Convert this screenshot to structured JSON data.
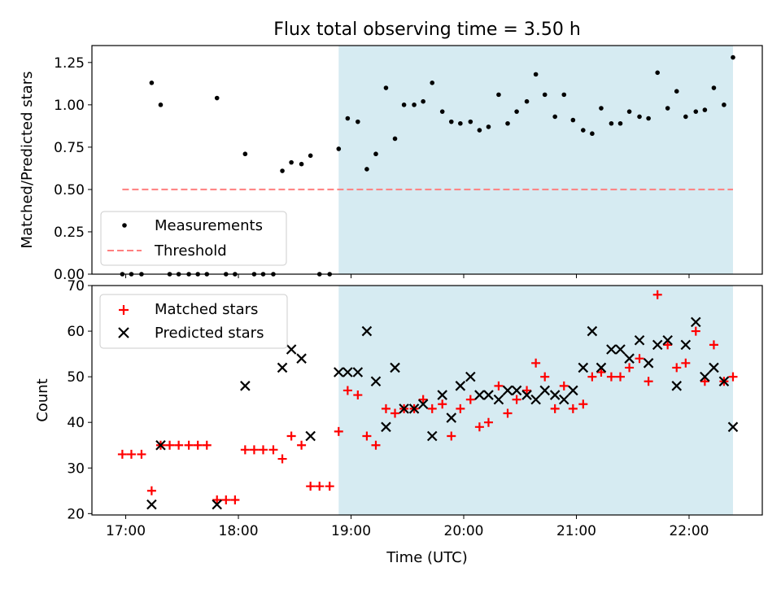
{
  "figure": {
    "title": "Flux total observing time = 3.50 h"
  },
  "colors": {
    "shade": "#add8e6",
    "threshold": "#ff7f7f",
    "measurement": "#000000",
    "matched": "#ff0000",
    "predicted": "#000000"
  },
  "chart_data": [
    {
      "type": "scatter",
      "ylabel": "Matched/Predicted stars",
      "xlim": [
        16.7,
        22.65
      ],
      "ylim": [
        0,
        1.35
      ],
      "yticks": [
        0,
        0.25,
        0.5,
        0.75,
        1.0,
        1.25
      ],
      "ytick_labels": [
        "0.00",
        "0.25",
        "0.50",
        "0.75",
        "1.00",
        "1.25"
      ],
      "shaded_region": [
        18.89,
        22.39
      ],
      "legend": {
        "position": "lower-left",
        "entries": [
          "Measurements",
          "Threshold"
        ]
      },
      "threshold": {
        "name": "Threshold",
        "y": 0.5,
        "x_range": [
          16.97,
          22.39
        ]
      },
      "series": [
        {
          "name": "Measurements",
          "marker": "dot",
          "x": [
            16.97,
            17.05,
            17.14,
            17.23,
            17.31,
            17.39,
            17.47,
            17.56,
            17.64,
            17.72,
            17.81,
            17.89,
            17.97,
            18.06,
            18.14,
            18.22,
            18.31,
            18.39,
            18.47,
            18.56,
            18.64,
            18.72,
            18.81,
            18.89,
            18.97,
            19.06,
            19.14,
            19.22,
            19.31,
            19.39,
            19.47,
            19.56,
            19.64,
            19.72,
            19.81,
            19.89,
            19.97,
            20.06,
            20.14,
            20.22,
            20.31,
            20.39,
            20.47,
            20.56,
            20.64,
            20.72,
            20.81,
            20.89,
            20.97,
            21.06,
            21.14,
            21.22,
            21.31,
            21.39,
            21.47,
            21.56,
            21.64,
            21.72,
            21.81,
            21.89,
            21.97,
            22.06,
            22.14,
            22.22,
            22.31,
            22.39
          ],
          "y": [
            0,
            0,
            0,
            1.13,
            1.0,
            0,
            0,
            0,
            0,
            0,
            1.04,
            0,
            0,
            0.71,
            0,
            0,
            0,
            0.61,
            0.66,
            0.65,
            0.7,
            0,
            0,
            0.74,
            0.92,
            0.9,
            0.62,
            0.71,
            1.1,
            0.8,
            1.0,
            1.0,
            1.02,
            1.13,
            0.96,
            0.9,
            0.89,
            0.9,
            0.85,
            0.87,
            1.06,
            0.89,
            0.96,
            1.02,
            1.18,
            1.06,
            0.93,
            1.06,
            0.91,
            0.85,
            0.83,
            0.98,
            0.89,
            0.89,
            0.96,
            0.93,
            0.92,
            1.19,
            0.98,
            1.08,
            0.93,
            0.96,
            0.97,
            1.1,
            1.0,
            1.28
          ]
        }
      ]
    },
    {
      "type": "scatter",
      "xlabel": "Time (UTC)",
      "ylabel": "Count",
      "xlim": [
        16.7,
        22.65
      ],
      "ylim": [
        19.7,
        70
      ],
      "yticks": [
        20,
        30,
        40,
        50,
        60,
        70
      ],
      "xticks": [
        17,
        18,
        19,
        20,
        21,
        22
      ],
      "xtick_labels": [
        "17:00",
        "18:00",
        "19:00",
        "20:00",
        "21:00",
        "22:00"
      ],
      "shaded_region": [
        18.89,
        22.39
      ],
      "legend": {
        "position": "upper-left",
        "entries": [
          "Matched stars",
          "Predicted stars"
        ]
      },
      "series": [
        {
          "name": "Matched stars",
          "marker": "plus",
          "x": [
            16.97,
            17.05,
            17.14,
            17.23,
            17.31,
            17.39,
            17.47,
            17.56,
            17.64,
            17.72,
            17.81,
            17.89,
            17.97,
            18.06,
            18.14,
            18.22,
            18.31,
            18.39,
            18.47,
            18.56,
            18.64,
            18.72,
            18.81,
            18.89,
            18.97,
            19.06,
            19.14,
            19.22,
            19.31,
            19.39,
            19.47,
            19.56,
            19.64,
            19.72,
            19.81,
            19.89,
            19.97,
            20.06,
            20.14,
            20.22,
            20.31,
            20.39,
            20.47,
            20.56,
            20.64,
            20.72,
            20.81,
            20.89,
            20.97,
            21.06,
            21.14,
            21.22,
            21.31,
            21.39,
            21.47,
            21.56,
            21.64,
            21.72,
            21.81,
            21.89,
            21.97,
            22.06,
            22.14,
            22.22,
            22.31,
            22.39
          ],
          "y": [
            33,
            33,
            33,
            25,
            35,
            35,
            35,
            35,
            35,
            35,
            23,
            23,
            23,
            34,
            34,
            34,
            34,
            32,
            37,
            35,
            26,
            26,
            26,
            38,
            47,
            46,
            37,
            35,
            43,
            42,
            43,
            43,
            45,
            43,
            44,
            37,
            43,
            45,
            39,
            40,
            48,
            42,
            45,
            47,
            53,
            50,
            43,
            48,
            43,
            44,
            50,
            51,
            50,
            50,
            52,
            54,
            49,
            68,
            57,
            52,
            53,
            60,
            49,
            57,
            49,
            50
          ]
        },
        {
          "name": "Predicted stars",
          "marker": "x",
          "x": [
            17.23,
            17.31,
            17.81,
            18.06,
            18.39,
            18.47,
            18.56,
            18.64,
            18.89,
            18.97,
            19.06,
            19.14,
            19.22,
            19.31,
            19.39,
            19.47,
            19.56,
            19.64,
            19.72,
            19.81,
            19.89,
            19.97,
            20.06,
            20.14,
            20.22,
            20.31,
            20.39,
            20.47,
            20.56,
            20.64,
            20.72,
            20.81,
            20.89,
            20.97,
            21.06,
            21.14,
            21.22,
            21.31,
            21.39,
            21.47,
            21.56,
            21.64,
            21.72,
            21.81,
            21.89,
            21.97,
            22.06,
            22.14,
            22.22,
            22.31,
            22.39
          ],
          "y": [
            22,
            35,
            22,
            48,
            52,
            56,
            54,
            37,
            51,
            51,
            51,
            60,
            49,
            39,
            52,
            43,
            43,
            44,
            37,
            46,
            41,
            48,
            50,
            46,
            46,
            45,
            47,
            47,
            46,
            45,
            47,
            46,
            45,
            47,
            52,
            60,
            52,
            56,
            56,
            54,
            58,
            53,
            57,
            58,
            48,
            57,
            62,
            50,
            52,
            49,
            39
          ]
        }
      ]
    }
  ]
}
